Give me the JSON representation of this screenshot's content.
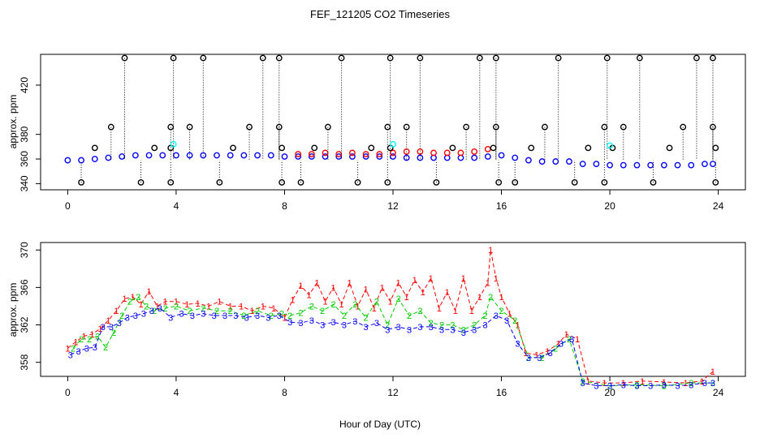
{
  "chart_data": [
    {
      "type": "scatter",
      "title": "FEF_121205  CO2 Timeseries",
      "xlabel": "",
      "ylabel": "approx. ppm",
      "xlim": [
        -1,
        25
      ],
      "ylim": [
        335,
        445
      ],
      "x_ticks": [
        0,
        4,
        8,
        12,
        16,
        20,
        24
      ],
      "y_ticks": [
        340,
        380,
        420
      ],
      "y_tick_labels_shown": [
        "340",
        "360",
        "380",
        "420"
      ],
      "grid": false,
      "colors": {
        "series1": "#ff0000",
        "series2": "#00cc00",
        "series3": "#0000ff",
        "flagged": "#000000",
        "cyan": "#00ffff"
      },
      "series": [
        {
          "color": "#0000ff",
          "marker": "circle",
          "x": [
            0.0,
            0.5,
            1.0,
            1.5,
            2.0,
            2.5,
            3.0,
            3.5,
            4.0,
            4.5,
            5.0,
            5.5,
            6.0,
            6.5,
            7.0,
            7.5,
            8.0,
            8.5,
            9.0,
            9.5,
            10.0,
            10.5,
            11.0,
            11.5,
            12.0,
            12.5,
            13.0,
            13.5,
            14.0,
            14.5,
            15.0,
            15.5,
            16.0,
            16.5,
            17.0,
            17.5,
            18.0,
            18.5,
            19.0,
            19.5,
            20.0,
            20.5,
            21.0,
            21.5,
            22.0,
            22.5,
            23.0,
            23.5,
            23.8
          ],
          "y": [
            359,
            359,
            360,
            361,
            362,
            363,
            363,
            363,
            363,
            363,
            363,
            363,
            363,
            363,
            363,
            363,
            362,
            362,
            362,
            362,
            362,
            362,
            362,
            362,
            362,
            361,
            361,
            361,
            361,
            361,
            361,
            362,
            363,
            361,
            359,
            358,
            358,
            358,
            356,
            356,
            355,
            355,
            355,
            355,
            355,
            355,
            355,
            356,
            356
          ]
        },
        {
          "color": "#ff0000",
          "marker": "circle",
          "x": [
            8.5,
            9.0,
            9.5,
            10.0,
            10.5,
            11.0,
            11.5,
            12.0,
            12.5,
            13.0,
            13.5,
            14.0,
            14.5,
            15.0,
            15.5
          ],
          "y": [
            364,
            364,
            365,
            364,
            365,
            364,
            364,
            365,
            366,
            366,
            365,
            365,
            365,
            366,
            368
          ]
        },
        {
          "color": "#000000",
          "marker": "circle",
          "x": [
            2.1,
            3.9,
            5.0,
            7.2,
            7.8,
            10.1,
            11.9,
            13.0,
            15.2,
            15.8,
            18.1,
            19.9,
            21.1,
            23.2,
            23.8
          ],
          "y": [
            442,
            442,
            442,
            442,
            442,
            442,
            442,
            442,
            442,
            442,
            442,
            442,
            442,
            442,
            442
          ]
        },
        {
          "color": "#000000",
          "marker": "circle",
          "x": [
            1.6,
            3.8,
            4.5,
            6.7,
            7.8,
            9.6,
            11.8,
            12.5,
            14.7,
            15.8,
            17.6,
            19.8,
            20.5,
            22.7,
            23.8
          ],
          "y": [
            386,
            386,
            386,
            386,
            386,
            386,
            386,
            386,
            386,
            386,
            386,
            386,
            386,
            386,
            386
          ]
        },
        {
          "color": "#000000",
          "marker": "circle",
          "x": [
            0.5,
            2.7,
            3.8,
            5.6,
            7.9,
            8.6,
            10.7,
            11.8,
            13.6,
            15.9,
            16.5,
            18.7,
            19.8,
            21.6,
            23.9
          ],
          "y": [
            341,
            341,
            341,
            341,
            341,
            341,
            341,
            341,
            341,
            341,
            341,
            341,
            341,
            341,
            341
          ]
        },
        {
          "color": "#000000",
          "marker": "circle",
          "x": [
            1.0,
            3.2,
            3.8,
            6.1,
            7.9,
            9.1,
            11.2,
            11.9,
            14.2,
            15.7,
            17.1,
            19.2,
            20.1,
            22.2,
            23.9
          ],
          "y": [
            369,
            369,
            369,
            369,
            369,
            369,
            369,
            369,
            369,
            369,
            369,
            369,
            369,
            369,
            369
          ]
        },
        {
          "color": "#00ffff",
          "marker": "circle",
          "x": [
            3.9,
            12.0,
            20.0
          ],
          "y": [
            372,
            372,
            371
          ]
        }
      ]
    },
    {
      "type": "line",
      "title": "",
      "xlabel": "Hour of Day (UTC)",
      "ylabel": "approx. ppm",
      "xlim": [
        -1,
        25
      ],
      "ylim": [
        356.5,
        370.8
      ],
      "x_ticks": [
        0,
        4,
        8,
        12,
        16,
        20,
        24
      ],
      "y_ticks": [
        358,
        362,
        366,
        370
      ],
      "grid": false,
      "legend": "none",
      "series": [
        {
          "label_char": "1",
          "color": "#ff0000",
          "x": [
            0.0,
            0.3,
            0.6,
            0.9,
            1.2,
            1.5,
            1.8,
            2.1,
            2.4,
            2.7,
            3.0,
            3.3,
            3.6,
            4.0,
            4.4,
            4.8,
            5.2,
            5.6,
            6.0,
            6.4,
            6.8,
            7.2,
            7.6,
            8.0,
            8.3,
            8.6,
            8.9,
            9.2,
            9.5,
            9.8,
            10.1,
            10.4,
            10.7,
            11.0,
            11.3,
            11.6,
            11.9,
            12.2,
            12.5,
            12.8,
            13.1,
            13.4,
            13.7,
            14.0,
            14.3,
            14.6,
            14.9,
            15.2,
            15.5,
            15.6,
            15.8,
            16.0,
            16.3,
            16.6,
            16.9,
            17.3,
            17.7,
            18.1,
            18.4,
            18.8,
            19.2,
            19.8,
            20.5,
            21.2,
            22.0,
            22.8,
            23.4,
            23.8
          ],
          "y": [
            359.5,
            360.2,
            360.8,
            361.0,
            361.6,
            362.5,
            363.5,
            364.8,
            365.0,
            364.2,
            365.6,
            364.0,
            364.5,
            364.5,
            364.2,
            364.3,
            364.0,
            364.5,
            364.0,
            364.0,
            363.5,
            364.0,
            363.8,
            362.8,
            364.7,
            366.2,
            365.2,
            366.5,
            364.5,
            366.0,
            364.2,
            366.5,
            364.0,
            365.8,
            363.8,
            366.0,
            364.5,
            366.5,
            365.0,
            366.8,
            365.5,
            367.0,
            363.8,
            365.5,
            363.5,
            367.0,
            363.5,
            365.0,
            366.5,
            370.0,
            367.0,
            365.0,
            363.2,
            362.0,
            359.0,
            358.8,
            359.2,
            360.0,
            361.0,
            360.5,
            356.0,
            355.8,
            355.8,
            356.0,
            355.9,
            355.8,
            356.0,
            357.0
          ]
        },
        {
          "label_char": "2",
          "color": "#00cc00",
          "x": [
            0.2,
            0.5,
            0.8,
            1.1,
            1.4,
            1.7,
            2.0,
            2.3,
            2.6,
            2.9,
            3.2,
            3.6,
            4.0,
            4.5,
            5.0,
            5.5,
            6.0,
            6.5,
            7.0,
            7.5,
            7.9,
            8.2,
            8.6,
            9.0,
            9.4,
            9.8,
            10.2,
            10.6,
            11.0,
            11.4,
            11.8,
            12.2,
            12.6,
            13.0,
            13.4,
            13.8,
            14.2,
            14.6,
            15.0,
            15.4,
            15.6,
            16.0,
            16.5,
            17.0,
            17.5,
            18.0,
            18.5,
            19.0,
            20.0,
            21.0,
            22.0,
            23.0,
            23.8
          ],
          "y": [
            359.5,
            360.5,
            360.5,
            360.8,
            359.6,
            361.2,
            363.0,
            364.5,
            365.0,
            364.0,
            363.5,
            363.8,
            364.0,
            363.5,
            363.8,
            363.5,
            363.5,
            363.0,
            363.5,
            363.0,
            363.2,
            363.0,
            363.3,
            364.0,
            363.5,
            364.2,
            363.0,
            364.2,
            362.8,
            364.5,
            362.0,
            364.8,
            363.0,
            363.5,
            362.2,
            362.0,
            362.0,
            361.5,
            362.0,
            363.0,
            365.0,
            363.5,
            362.5,
            358.5,
            358.5,
            359.5,
            360.5,
            356.0,
            355.5,
            355.6,
            355.5,
            355.8,
            355.8
          ]
        },
        {
          "label_char": "3",
          "color": "#0000ff",
          "x": [
            0.1,
            0.4,
            0.7,
            1.0,
            1.3,
            1.6,
            1.9,
            2.2,
            2.5,
            2.8,
            3.1,
            3.4,
            3.8,
            4.2,
            4.6,
            5.0,
            5.4,
            5.8,
            6.2,
            6.6,
            7.0,
            7.4,
            7.8,
            8.2,
            8.6,
            9.0,
            9.4,
            9.8,
            10.2,
            10.6,
            11.0,
            11.4,
            11.8,
            12.2,
            12.6,
            13.0,
            13.4,
            13.8,
            14.2,
            14.6,
            15.0,
            15.4,
            15.8,
            16.2,
            16.6,
            17.0,
            17.4,
            17.8,
            18.2,
            18.6,
            19.0,
            19.5,
            20.0,
            20.5,
            21.0,
            21.5,
            22.0,
            22.5,
            23.0,
            23.5,
            23.8
          ],
          "y": [
            358.8,
            359.2,
            359.5,
            359.6,
            361.8,
            361.8,
            362.2,
            362.8,
            363.0,
            363.2,
            363.5,
            363.8,
            362.8,
            363.2,
            363.0,
            363.2,
            363.0,
            363.0,
            363.0,
            362.8,
            363.0,
            362.8,
            363.0,
            362.3,
            362.2,
            362.5,
            362.0,
            362.3,
            362.0,
            362.4,
            361.8,
            362.2,
            361.5,
            361.8,
            361.5,
            361.8,
            361.8,
            361.5,
            361.5,
            361.2,
            361.5,
            362.0,
            363.0,
            362.5,
            360.0,
            358.5,
            358.5,
            359.0,
            360.0,
            360.5,
            355.8,
            355.5,
            355.5,
            355.6,
            355.5,
            355.5,
            355.6,
            355.5,
            355.6,
            355.8,
            355.8
          ]
        }
      ]
    }
  ]
}
